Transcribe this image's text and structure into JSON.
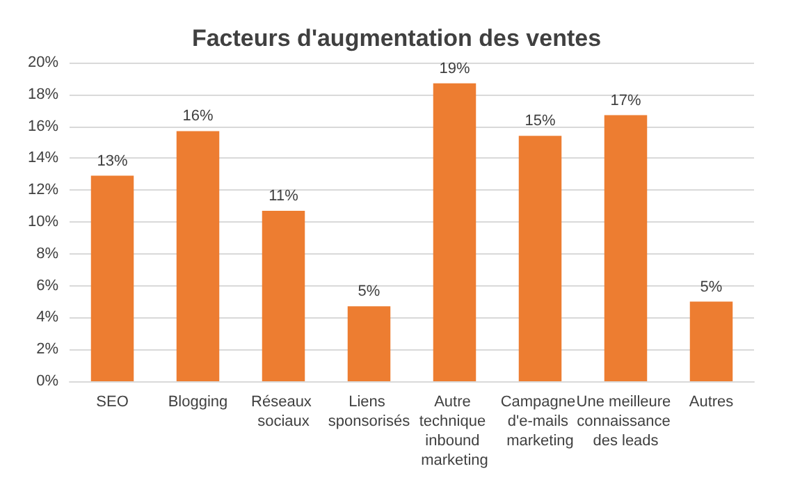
{
  "chart_data": {
    "type": "bar",
    "title": "Facteurs d'augmentation des ventes",
    "categories": [
      "SEO",
      "Blogging",
      "Réseaux sociaux",
      "Liens sponsorisés",
      "Autre technique inbound marketing",
      "Campagne d'e-mails marketing",
      "Une meilleure connaissance des leads",
      "Autres"
    ],
    "values": [
      12.9,
      15.7,
      10.7,
      4.7,
      18.7,
      15.4,
      16.7,
      5.0
    ],
    "value_labels": [
      "13%",
      "16%",
      "11%",
      "5%",
      "19%",
      "15%",
      "17%",
      "5%"
    ],
    "color": "#ed7d31",
    "ylim": [
      0,
      20
    ],
    "yticks": [
      {
        "value": 0,
        "label": "0%"
      },
      {
        "value": 2,
        "label": "2%"
      },
      {
        "value": 4,
        "label": "4%"
      },
      {
        "value": 6,
        "label": "6%"
      },
      {
        "value": 8,
        "label": "8%"
      },
      {
        "value": 10,
        "label": "10%"
      },
      {
        "value": 12,
        "label": "12%"
      },
      {
        "value": 14,
        "label": "14%"
      },
      {
        "value": 16,
        "label": "16%"
      },
      {
        "value": 18,
        "label": "18%"
      },
      {
        "value": 20,
        "label": "20%"
      }
    ],
    "grid": "y"
  }
}
